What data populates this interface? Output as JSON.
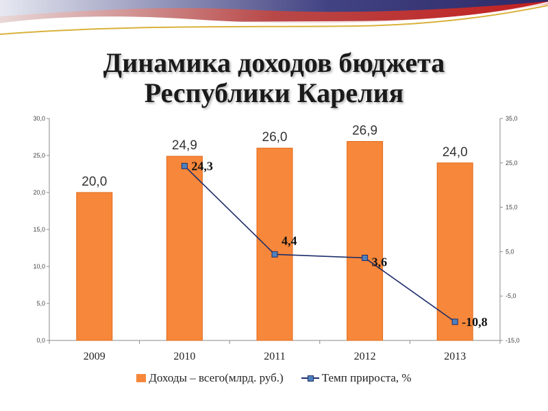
{
  "title": {
    "line1": "Динамика доходов бюджета",
    "line2": "Республики Карелия"
  },
  "colors": {
    "bar": "#f7873a",
    "bar_edge": "#e06a1a",
    "line": "#1c2c6a",
    "marker": "#4f81bd"
  },
  "chart_data": {
    "type": "bar",
    "categories": [
      "2009",
      "2010",
      "2011",
      "2012",
      "2013"
    ],
    "series": [
      {
        "name": "Доходы – всего(млрд. руб.)",
        "type": "bar",
        "axis": "left",
        "values": [
          20.0,
          24.9,
          26.0,
          26.9,
          24.0
        ],
        "labels": [
          "20,0",
          "24,9",
          "26,0",
          "26,9",
          "24,0"
        ]
      },
      {
        "name": "Темп прироста, %",
        "type": "line",
        "axis": "right",
        "values": [
          null,
          24.3,
          4.4,
          3.6,
          -10.8
        ],
        "labels": [
          "",
          "24,3",
          "4,4",
          "3,6",
          "-10,8"
        ]
      }
    ],
    "y_left": {
      "lim": [
        0,
        30
      ],
      "ticks": [
        "0,0",
        "5,0",
        "10,0",
        "15,0",
        "20,0",
        "25,0",
        "30,0"
      ]
    },
    "y_right": {
      "lim": [
        -15,
        35
      ],
      "ticks": [
        "-15,0",
        "-5,0",
        "5,0",
        "15,0",
        "25,0",
        "35,0"
      ]
    },
    "grid": false,
    "legend_position": "bottom"
  }
}
